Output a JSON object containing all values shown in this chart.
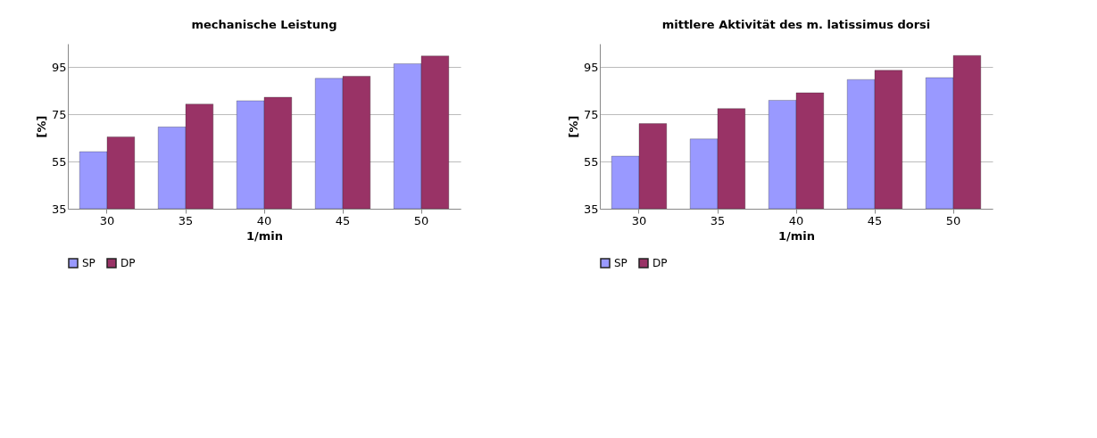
{
  "chart_data": [
    {
      "type": "bar",
      "title": "mechanische Leistung",
      "xlabel": "1/min",
      "ylabel": "[%]",
      "categories": [
        "30",
        "35",
        "40",
        "45",
        "50"
      ],
      "series": [
        {
          "name": "SP",
          "color": "#9999ff",
          "values": [
            59.2,
            69.7,
            80.8,
            90.3,
            96.5
          ]
        },
        {
          "name": "DP",
          "color": "#993366",
          "values": [
            65.5,
            79.4,
            82.3,
            91.2,
            99.8
          ]
        }
      ],
      "ylim": [
        35,
        105
      ],
      "yticks": [
        35,
        55,
        75,
        95
      ],
      "grid": "y",
      "legend": "bottom"
    },
    {
      "type": "bar",
      "title": "mittlere Aktivität des m. latissimus dorsi",
      "xlabel": "1/min",
      "ylabel": "[%]",
      "categories": [
        "30",
        "35",
        "40",
        "45",
        "50"
      ],
      "series": [
        {
          "name": "SP",
          "color": "#9999ff",
          "values": [
            57.3,
            64.6,
            81,
            89.8,
            90.6
          ]
        },
        {
          "name": "DP",
          "color": "#993366",
          "values": [
            71.1,
            77.5,
            84.2,
            93.7,
            100
          ]
        }
      ],
      "ylim": [
        35,
        105
      ],
      "yticks": [
        35,
        55,
        75,
        95
      ],
      "grid": "y",
      "legend": "bottom"
    }
  ]
}
